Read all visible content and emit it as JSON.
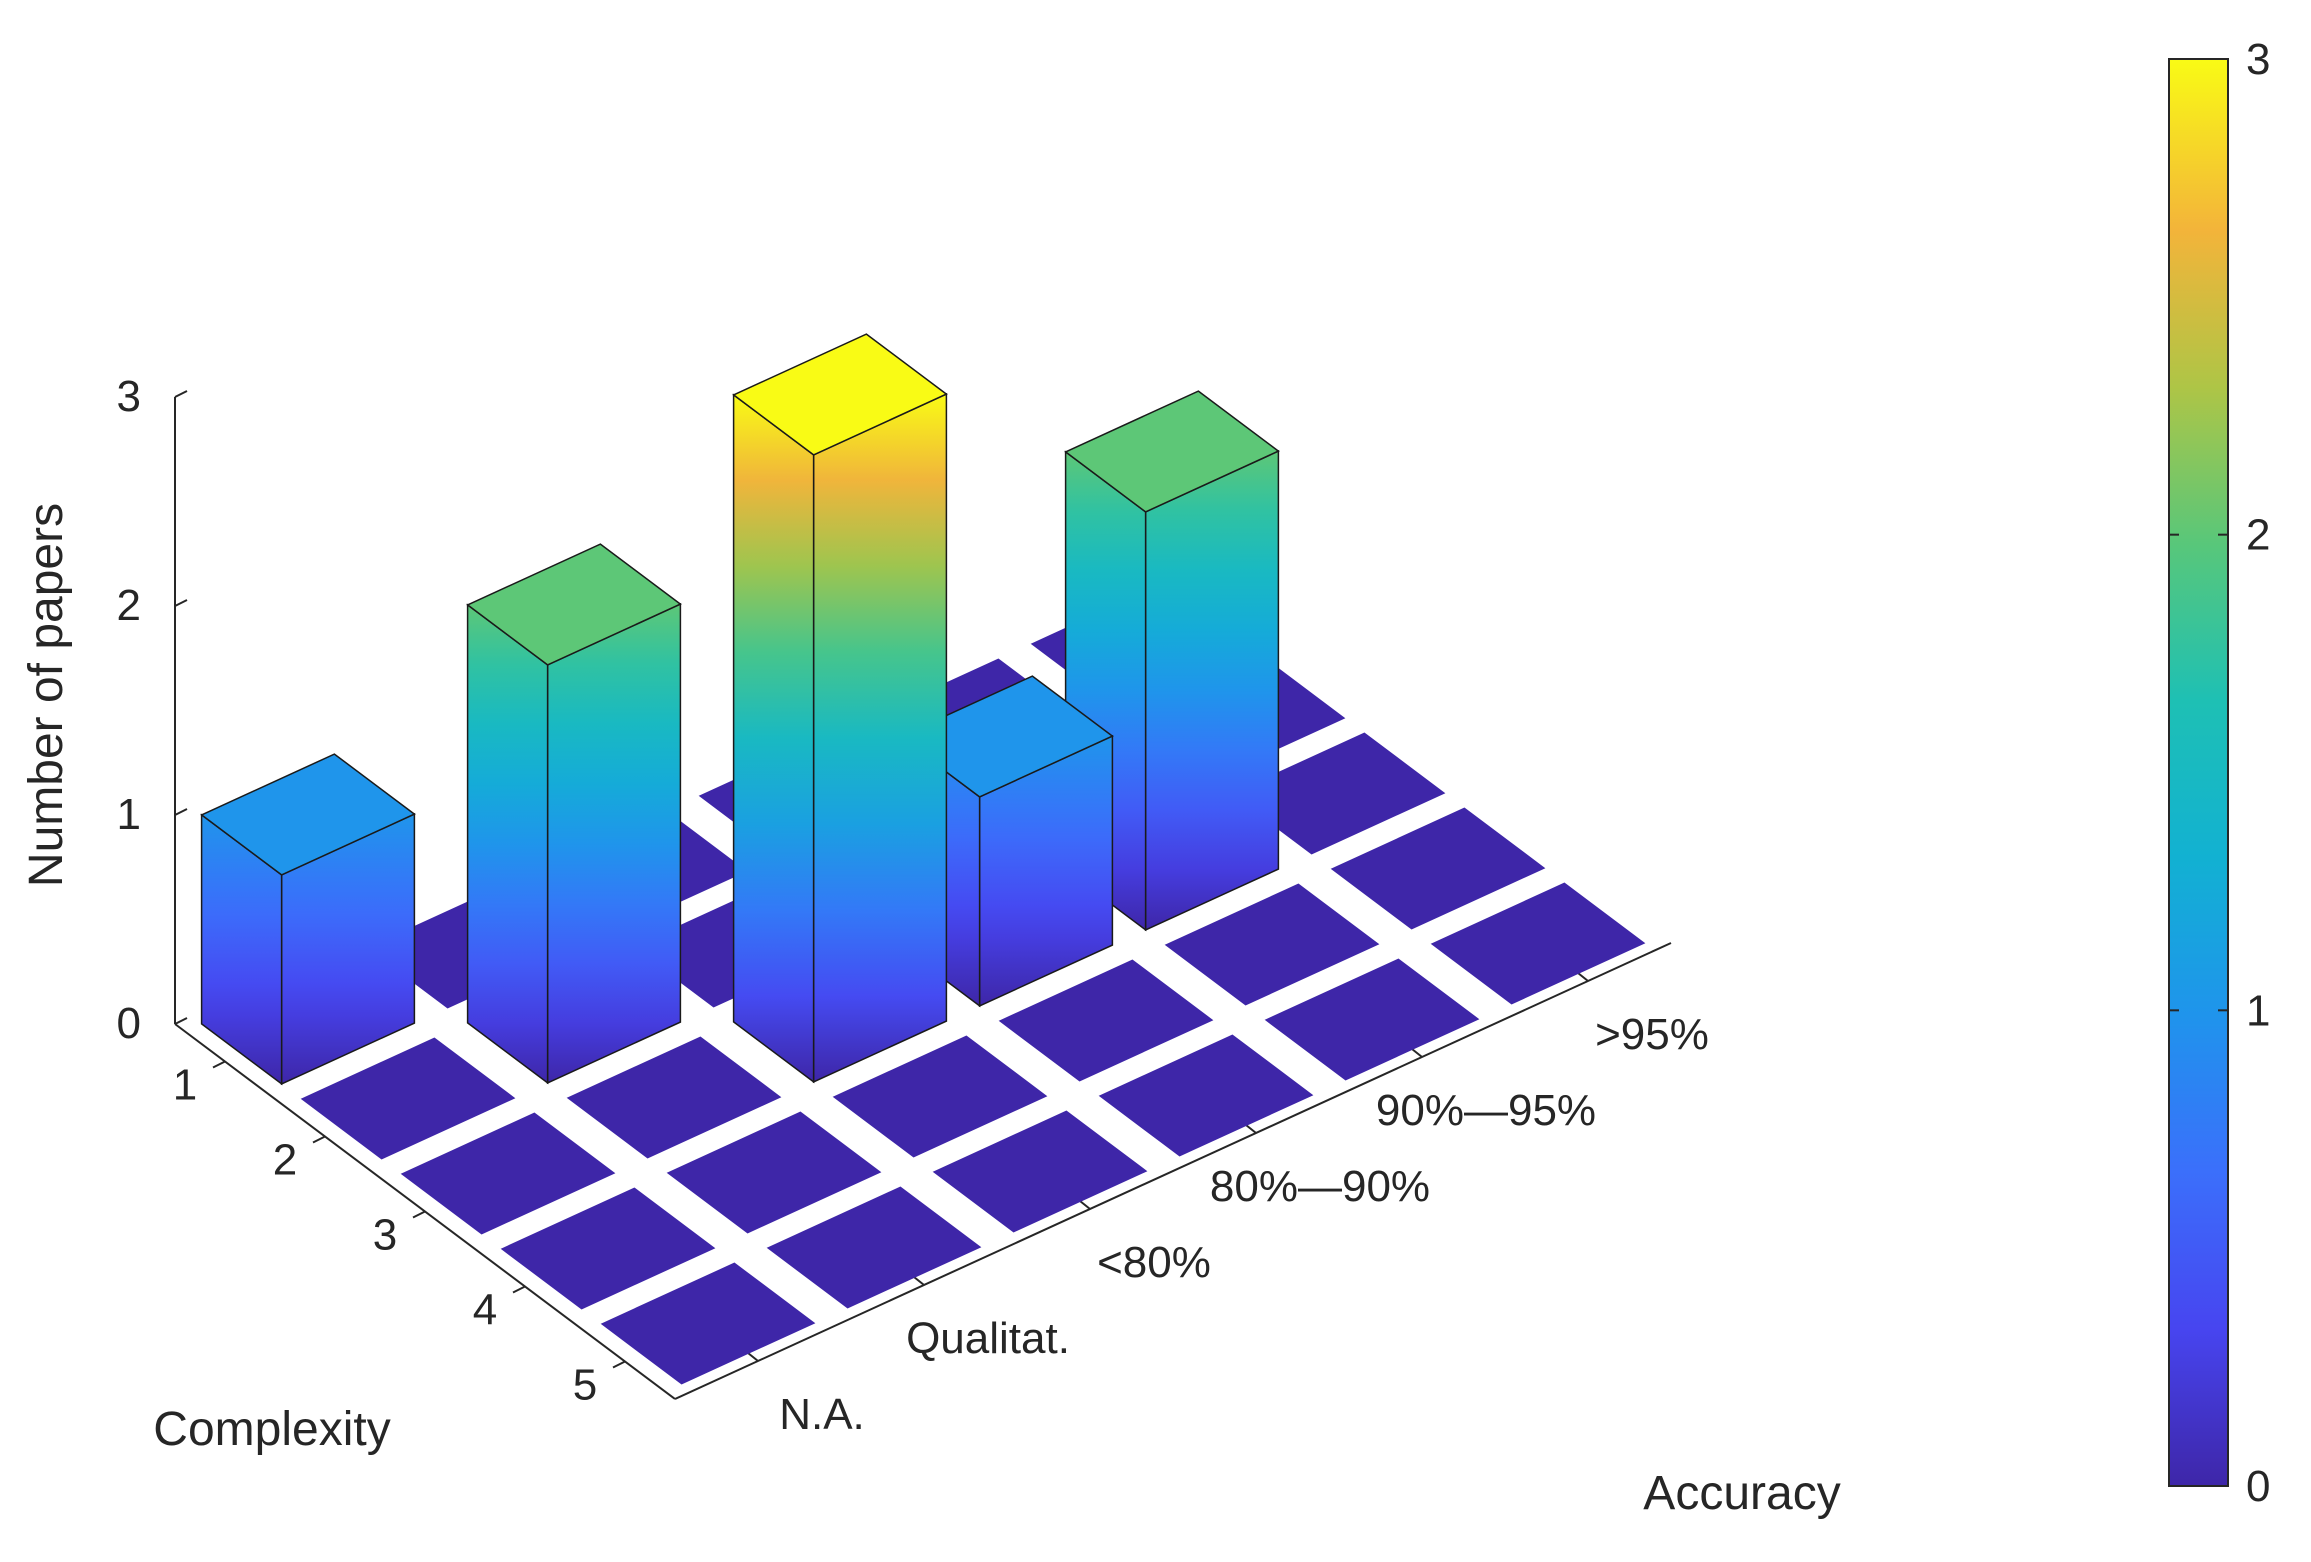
{
  "chart_data": {
    "type": "bar3d",
    "zlabel": "Number of papers",
    "xlabel": "Accuracy",
    "ylabel": "Complexity",
    "x_categories": [
      "N.A.",
      "Qualitat.",
      "<80%",
      "80%—90%",
      "90%—95%",
      ">95%"
    ],
    "y_categories": [
      "1",
      "2",
      "3",
      "4",
      "5"
    ],
    "z_ticks": [
      "0",
      "1",
      "2",
      "3"
    ],
    "zlim": [
      0,
      3
    ],
    "values": [
      [
        1,
        0,
        0,
        0,
        0,
        0
      ],
      [
        0,
        2,
        0,
        0,
        0,
        0
      ],
      [
        0,
        0,
        3,
        1,
        2,
        0
      ],
      [
        0,
        0,
        0,
        0,
        0,
        0
      ],
      [
        0,
        0,
        0,
        0,
        0,
        0
      ]
    ],
    "colorbar": {
      "ticks": [
        "0",
        "1",
        "2",
        "3"
      ],
      "colormap": "parula",
      "range": [
        0,
        3
      ]
    },
    "grid": false
  }
}
